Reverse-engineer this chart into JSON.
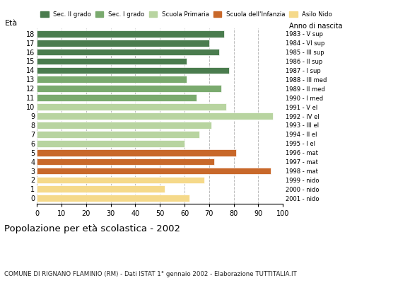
{
  "ages": [
    18,
    17,
    16,
    15,
    14,
    13,
    12,
    11,
    10,
    9,
    8,
    7,
    6,
    5,
    4,
    3,
    2,
    1,
    0
  ],
  "values": [
    76,
    70,
    74,
    61,
    78,
    61,
    75,
    65,
    77,
    96,
    71,
    66,
    60,
    81,
    72,
    95,
    68,
    52,
    62
  ],
  "colors": [
    "#4a7c4e",
    "#4a7c4e",
    "#4a7c4e",
    "#4a7c4e",
    "#4a7c4e",
    "#7aaa6e",
    "#7aaa6e",
    "#7aaa6e",
    "#b8d4a0",
    "#b8d4a0",
    "#b8d4a0",
    "#b8d4a0",
    "#b8d4a0",
    "#c8682a",
    "#c8682a",
    "#c8682a",
    "#f5d98a",
    "#f5d98a",
    "#f5d98a"
  ],
  "right_labels": [
    "1983 - V sup",
    "1984 - VI sup",
    "1985 - III sup",
    "1986 - II sup",
    "1987 - I sup",
    "1988 - III med",
    "1989 - II med",
    "1990 - I med",
    "1991 - V el",
    "1992 - IV el",
    "1993 - III el",
    "1994 - II el",
    "1995 - I el",
    "1996 - mat",
    "1997 - mat",
    "1998 - mat",
    "1999 - nido",
    "2000 - nido",
    "2001 - nido"
  ],
  "legend_labels": [
    "Sec. II grado",
    "Sec. I grado",
    "Scuola Primaria",
    "Scuola dell'Infanzia",
    "Asilo Nido"
  ],
  "legend_colors": [
    "#4a7c4e",
    "#7aaa6e",
    "#b8d4a0",
    "#c8682a",
    "#f5d98a"
  ],
  "ylabel": "Età",
  "title": "Popolazione per età scolastica - 2002",
  "subtitle": "COMUNE DI RIGNANO FLAMINIO (RM) - Dati ISTAT 1° gennaio 2002 - Elaborazione TUTTITALIA.IT",
  "anno_label": "Anno di nascita",
  "xlim": [
    0,
    100
  ],
  "xticks": [
    0,
    10,
    20,
    30,
    40,
    50,
    60,
    70,
    80,
    90,
    100
  ]
}
